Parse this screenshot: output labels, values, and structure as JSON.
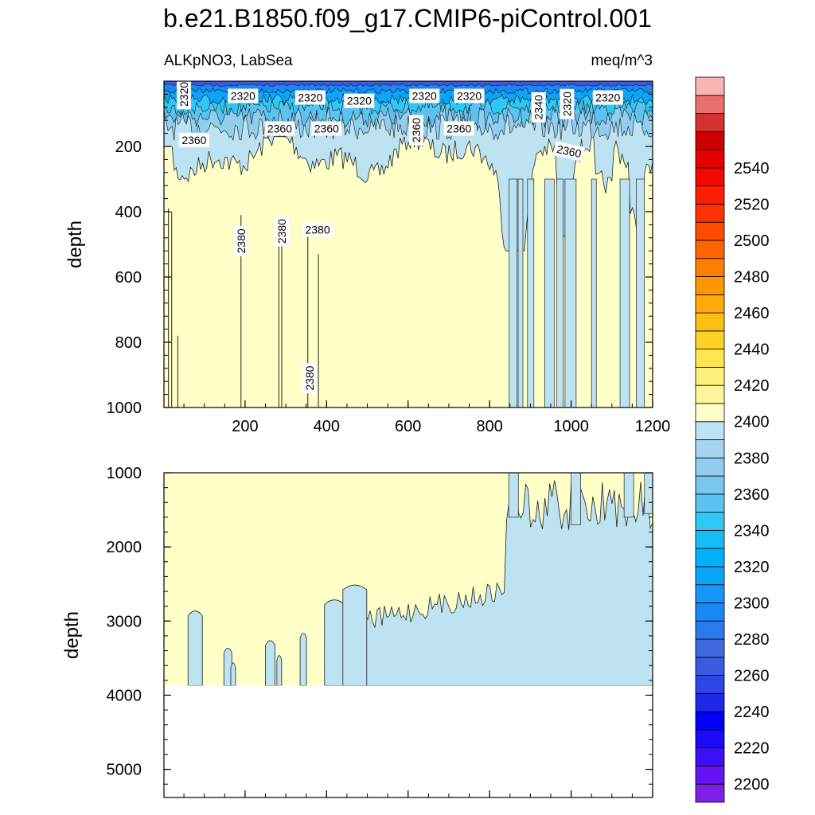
{
  "chart_data": [
    {
      "type": "heatmap",
      "subtype": "depth-time filled contour",
      "title": "b.e21.B1850.f09_g17.CMIP6-piControl.001",
      "left_label": "ALKpNO3, LabSea",
      "right_label": "meq/m^3",
      "xlabel": "",
      "ylabel": "depth",
      "xlim": [
        1,
        1200
      ],
      "ylim": [
        1000,
        0
      ],
      "y_reversed": true,
      "x_ticks": [
        "200",
        "400",
        "600",
        "800",
        "1000",
        "1200"
      ],
      "y_ticks": [
        "200",
        "400",
        "600",
        "800",
        "1000"
      ],
      "contour_line_labels": [
        {
          "text": "2320",
          "x": 50,
          "y": 40,
          "rot": -90
        },
        {
          "text": "2320",
          "x": 195,
          "y": 45,
          "rot": 0
        },
        {
          "text": "2320",
          "x": 360,
          "y": 50,
          "rot": 0
        },
        {
          "text": "2320",
          "x": 480,
          "y": 60,
          "rot": 0
        },
        {
          "text": "2320",
          "x": 640,
          "y": 45,
          "rot": 0
        },
        {
          "text": "2320",
          "x": 750,
          "y": 45,
          "rot": 0
        },
        {
          "text": "2340",
          "x": 920,
          "y": 80,
          "rot": -90
        },
        {
          "text": "2320",
          "x": 990,
          "y": 70,
          "rot": -90
        },
        {
          "text": "2320",
          "x": 1090,
          "y": 50,
          "rot": 0
        },
        {
          "text": "2360",
          "x": 75,
          "y": 180,
          "rot": 0
        },
        {
          "text": "2360",
          "x": 285,
          "y": 145,
          "rot": 0
        },
        {
          "text": "2360",
          "x": 400,
          "y": 145,
          "rot": 0
        },
        {
          "text": "2360",
          "x": 620,
          "y": 150,
          "rot": -90
        },
        {
          "text": "2360",
          "x": 725,
          "y": 145,
          "rot": 0
        },
        {
          "text": "2360",
          "x": 995,
          "y": 215,
          "rot": 12
        },
        {
          "text": "2380",
          "x": 190,
          "y": 490,
          "rot": -90
        },
        {
          "text": "2380",
          "x": 290,
          "y": 460,
          "rot": -90
        },
        {
          "text": "2380",
          "x": 378,
          "y": 455,
          "rot": 0
        },
        {
          "text": "2380",
          "x": 358,
          "y": 910,
          "rot": -90
        }
      ]
    },
    {
      "type": "heatmap",
      "subtype": "depth-time filled contour",
      "xlabel": "",
      "ylabel": "depth",
      "xlim": [
        1,
        1200
      ],
      "ylim": [
        5380,
        1000
      ],
      "y_reversed": true,
      "ocean_floor_depth": 3870,
      "y_ticks": [
        "1000",
        "2000",
        "3000",
        "4000",
        "5000"
      ]
    },
    {
      "type": "colorbar",
      "levels": [
        2200,
        2210,
        2220,
        2230,
        2240,
        2250,
        2260,
        2270,
        2280,
        2290,
        2300,
        2310,
        2320,
        2330,
        2340,
        2350,
        2360,
        2370,
        2380,
        2390,
        2400,
        2410,
        2420,
        2430,
        2440,
        2450,
        2460,
        2470,
        2480,
        2490,
        2500,
        2510,
        2520,
        2530,
        2540,
        2550
      ],
      "labels": [
        "2200",
        "2220",
        "2240",
        "2260",
        "2280",
        "2300",
        "2320",
        "2340",
        "2360",
        "2380",
        "2400",
        "2420",
        "2440",
        "2460",
        "2480",
        "2500",
        "2520",
        "2540"
      ],
      "colors": [
        "#7f1fe6",
        "#6414f0",
        "#3d0ff5",
        "#1a0af5",
        "#0000f5",
        "#1e28eb",
        "#2d46e6",
        "#3c5ae1",
        "#3f69dc",
        "#2a7aee",
        "#1a87f5",
        "#1696fa",
        "#0aa5fa",
        "#00b0ff",
        "#14bef5",
        "#2dc8f5",
        "#5ac3f0",
        "#78c8ed",
        "#90cdef",
        "#a6d4ef",
        "#bde3f2",
        "#ffffc8",
        "#fff59a",
        "#fff07a",
        "#ffe650",
        "#ffd228",
        "#ffbe14",
        "#ffaa0a",
        "#ff9600",
        "#ff7d00",
        "#ff6400",
        "#ff4b00",
        "#ff3200",
        "#ff1e00",
        "#f00a00",
        "#e60000",
        "#cd0000",
        "#d23232",
        "#eb6e6e",
        "#fab4b4"
      ]
    }
  ]
}
